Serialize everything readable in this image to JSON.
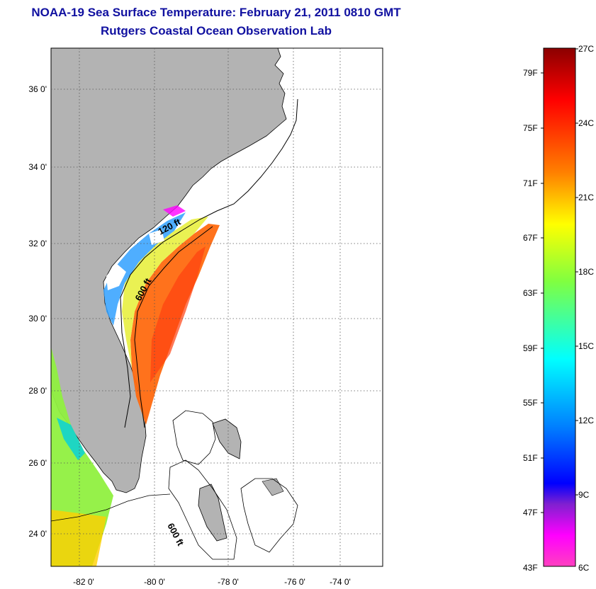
{
  "header": {
    "title": "NOAA-19 Sea Surface Temperature:  February 21, 2011 0810 GMT",
    "subtitle": "Rutgers Coastal Ocean Observation Lab"
  },
  "map": {
    "lon_ticks": [
      "-82 0'",
      "-80 0'",
      "-78 0'",
      "-76 0'",
      "-74 0'"
    ],
    "lat_ticks": [
      "36 0'",
      "34 0'",
      "32 0'",
      "30 0'",
      "28 0'",
      "26 0'",
      "24 0'"
    ],
    "contours": [
      "120 ft",
      "600 ft",
      "600 ft"
    ],
    "land_color": "#b3b3b3"
  },
  "colorbar": {
    "fahrenheit": [
      "79F",
      "75F",
      "71F",
      "67F",
      "63F",
      "59F",
      "55F",
      "51F",
      "47F",
      "43F"
    ],
    "celsius": [
      "27C",
      "24C",
      "21C",
      "18C",
      "15C",
      "12C",
      "9C",
      "6C"
    ],
    "colors": [
      "#8b0000",
      "#ff0000",
      "#ff8000",
      "#ffff00",
      "#80ff40",
      "#00ffff",
      "#0080ff",
      "#0000ff",
      "#8020d0",
      "#ff00ff",
      "#ff40c0"
    ]
  }
}
